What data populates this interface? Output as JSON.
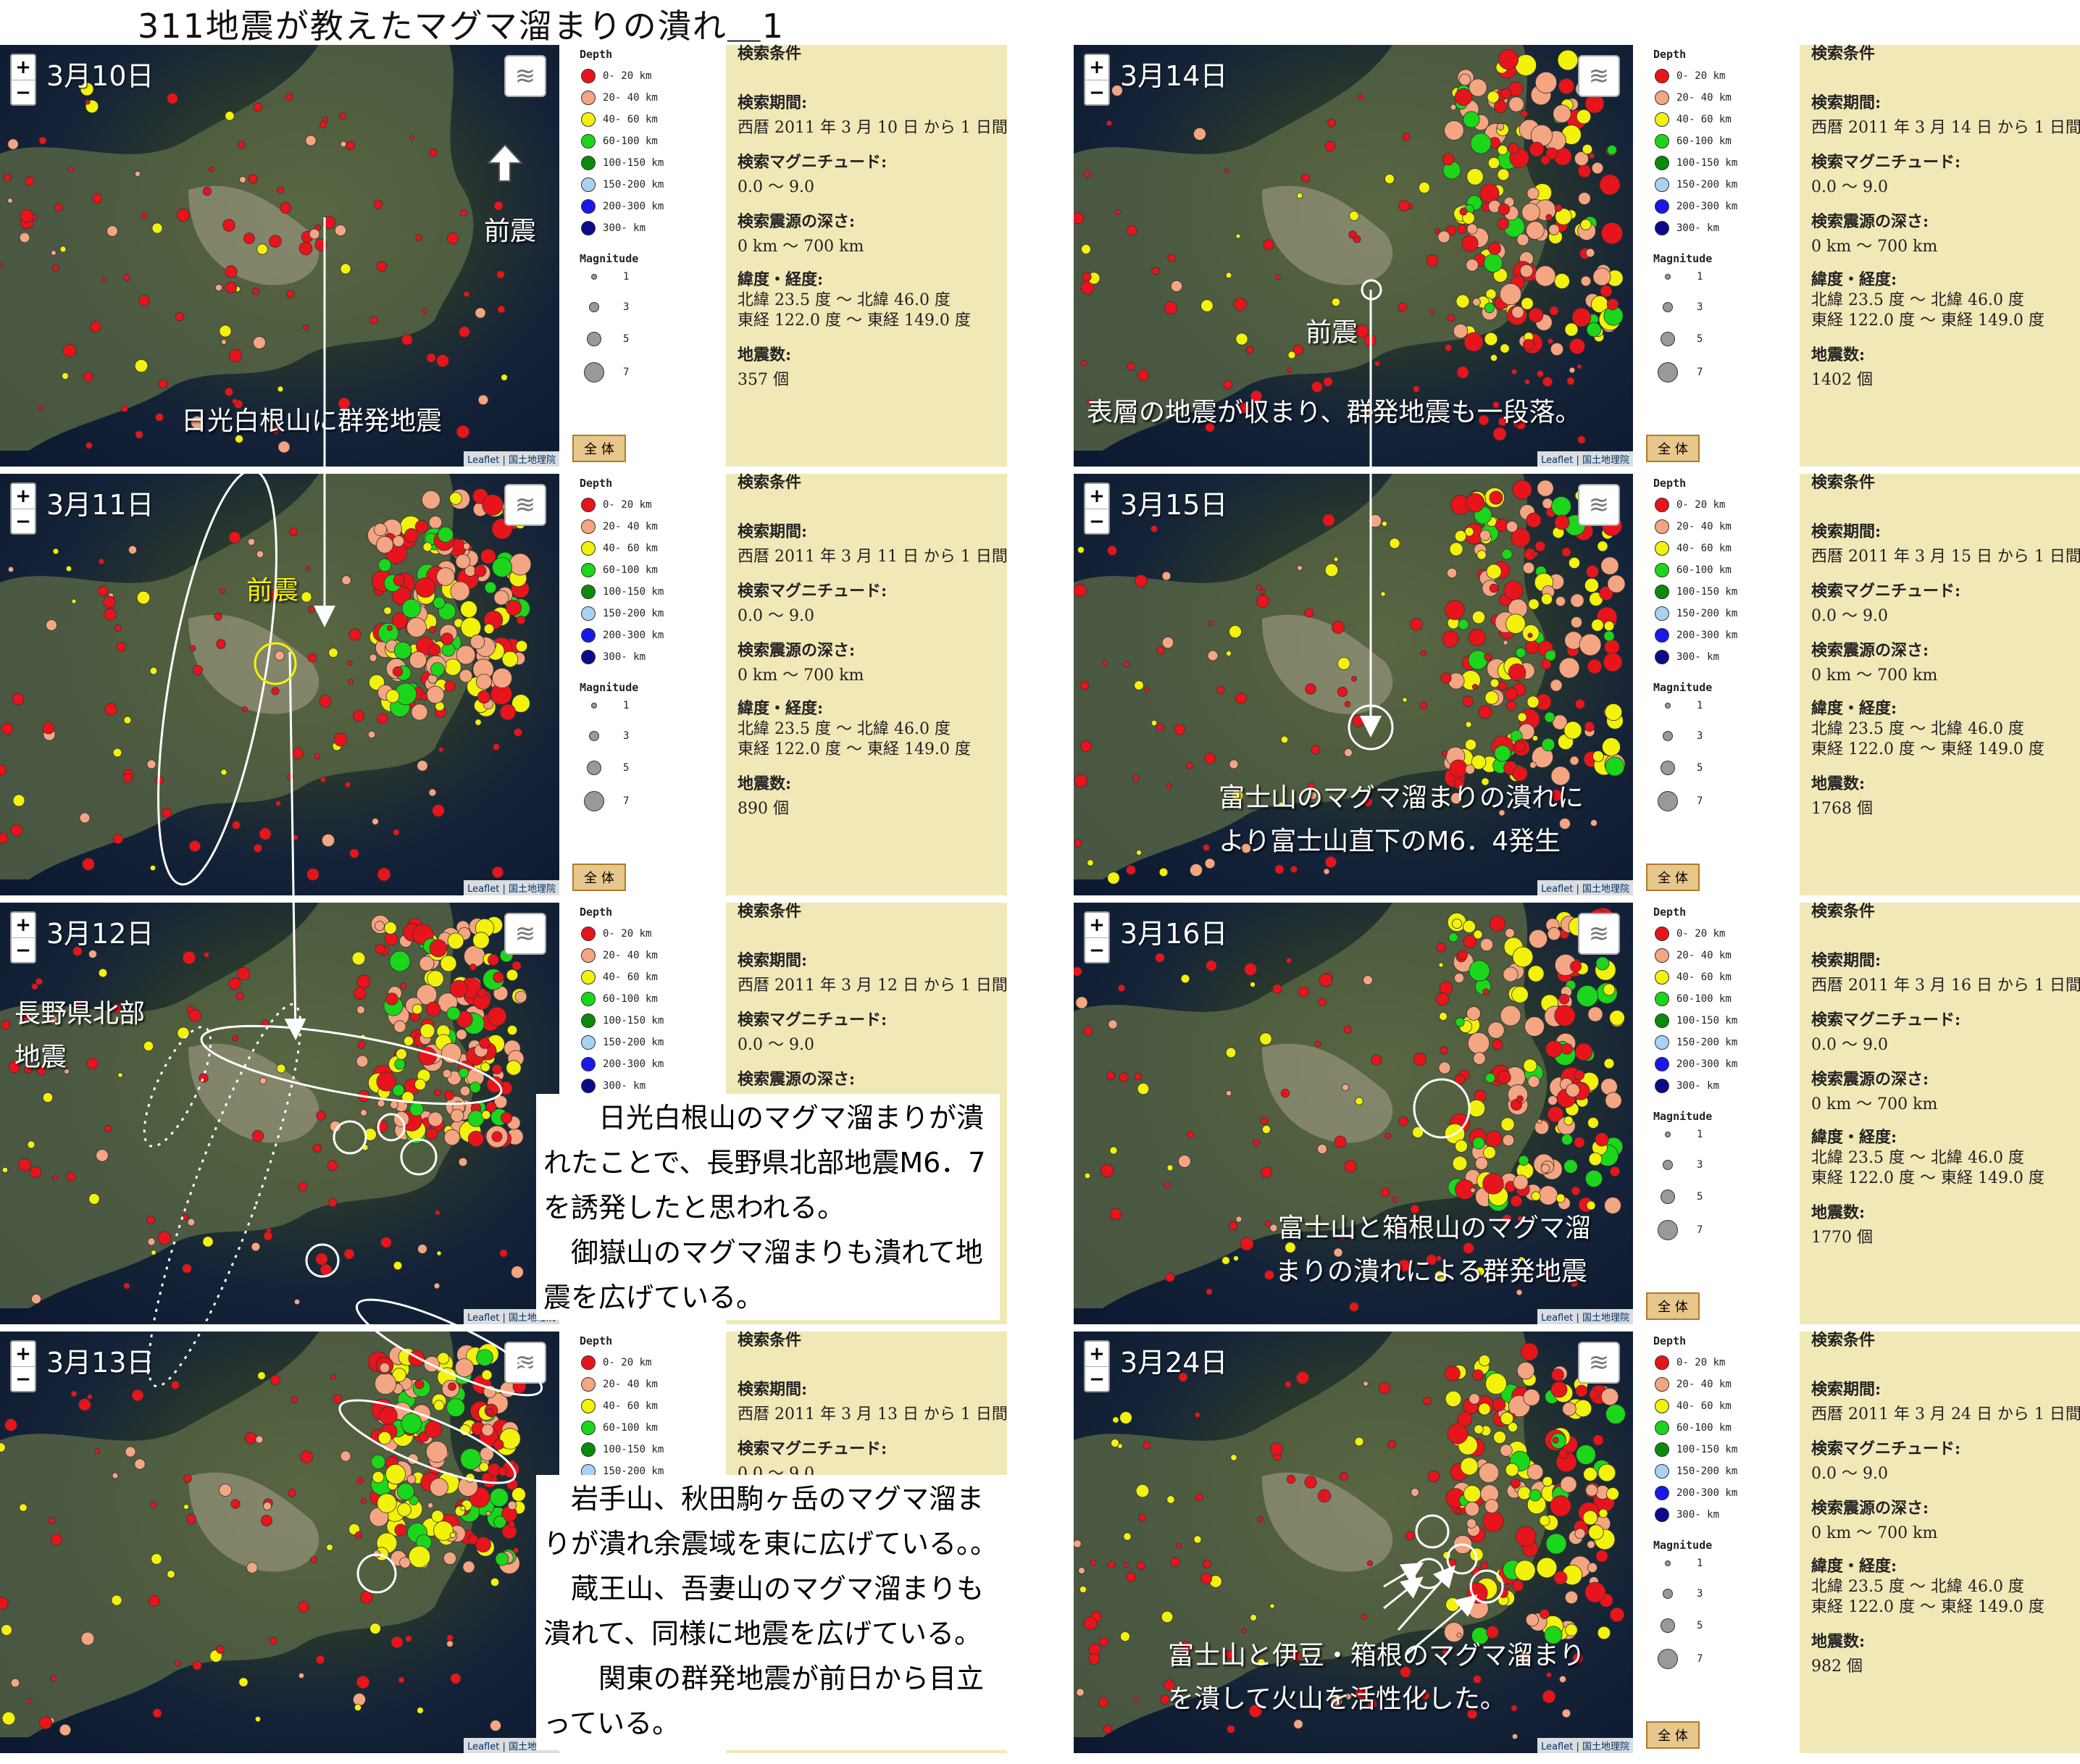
{
  "title": "311地震が教えたマグマ溜まりの潰れ＿1",
  "legend": {
    "depth_title": "Depth",
    "depth_rows": [
      {
        "label": "0- 20 km",
        "color": "#e8141b"
      },
      {
        "label": "20- 40 km",
        "color": "#f4a582"
      },
      {
        "label": "40- 60 km",
        "color": "#f2f20a"
      },
      {
        "label": "60-100 km",
        "color": "#1bd61b"
      },
      {
        "label": "100-150 km",
        "color": "#0a8a0a"
      },
      {
        "label": "150-200 km",
        "color": "#a8d2f2"
      },
      {
        "label": "200-300 km",
        "color": "#1818e8"
      },
      {
        "label": "300- km",
        "color": "#0a0a8a"
      }
    ],
    "mag_title": "Magnitude",
    "mag_rows": [
      "1",
      "3",
      "5",
      "7"
    ],
    "whole_button": "全 体"
  },
  "labels": {
    "header": "検索条件",
    "period": "検索期間:",
    "magnitude": "検索マグニチュード:",
    "magnitude_value": "0.0 〜 9.0",
    "depth": "検索震源の深さ:",
    "depth_value": " 0 km 〜 700 km",
    "latlon": "緯度・経度:",
    "lat_value": "北緯 23.5 度 〜 北緯 46.0 度",
    "lon_value": "東経 122.0 度 〜 東経 149.0 度",
    "count": "地震数:"
  },
  "zoom": {
    "plus": "+",
    "minus": "−"
  },
  "attribution": "Leaflet | 国土地理院",
  "layers_icon": "stack-layers",
  "panels": [
    {
      "id": "p1",
      "date": "3月10日",
      "period": "西暦 2011 年 3 月 10 日 から 1 日間",
      "count": "357 個",
      "texts": [
        "日光白根山に群発地震"
      ],
      "marker": "前震"
    },
    {
      "id": "p2",
      "date": "3月11日",
      "period": "西暦 2011 年 3 月 11 日 から 1 日間",
      "count": "890 個",
      "marker": "前震"
    },
    {
      "id": "p3",
      "date": "3月12日",
      "period": "西暦 2011 年 3 月 12 日 から 1 日間",
      "texts": [
        "長野県北部",
        "地震"
      ]
    },
    {
      "id": "p4",
      "date": "3月13日",
      "period": "西暦 2011 年 3 月 13 日 から 1 日間"
    },
    {
      "id": "p5",
      "date": "3月14日",
      "period": "西暦 2011 年 3 月 14 日 から 1 日間",
      "count": "1402 個",
      "texts": [
        "表層の地震が収まり、群発地震も一段落。"
      ],
      "marker": "前震"
    },
    {
      "id": "p6",
      "date": "3月15日",
      "period": "西暦 2011 年 3 月 15 日 から 1 日間",
      "count": "1768 個",
      "texts": [
        "富士山のマグマ溜まりの潰れに",
        "より富士山直下のM6．4発生"
      ]
    },
    {
      "id": "p7",
      "date": "3月16日",
      "period": "西暦 2011 年 3 月 16 日 から 1 日間",
      "count": "1770 個",
      "texts": [
        "富士山と箱根山のマグマ溜",
        "まりの潰れによる群発地震"
      ]
    },
    {
      "id": "p8",
      "date": "3月24日",
      "period": "西暦 2011 年 3 月 24 日 から 1 日間",
      "count": "982 個",
      "texts": [
        "富士山と伊豆・箱根のマグマ溜まり",
        "を潰して火山を活性化した。"
      ]
    }
  ],
  "notes": {
    "note1": "　　日光白根山のマグマ溜まりが潰れたことで、長野県北部地震M6．7を誘発したと思われる。\n　御嶽山のマグマ溜まりも潰れて地震を広げている。",
    "note2": "　岩手山、秋田駒ヶ岳のマグマ溜まりが潰れ余震域を東に広げている。。\n　蔵王山、吾妻山のマグマ溜まりも潰れて、同様に地震を広げている。\n　　関東の群発地震が前日から目立っている。"
  }
}
